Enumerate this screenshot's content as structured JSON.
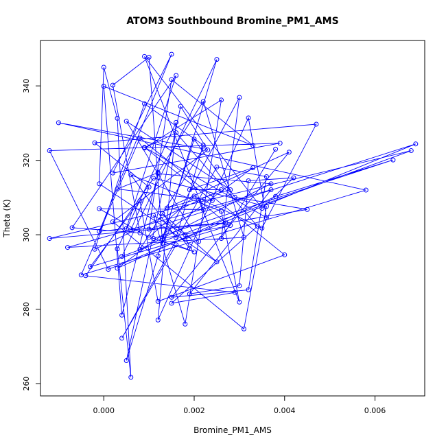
{
  "chart_data": {
    "type": "line",
    "title": "ATOM3 Southbound Bromine_PM1_AMS",
    "xlabel": "Bromine_PM1_AMS",
    "ylabel": "Theta (K)",
    "xlim": [
      -0.0014,
      0.0071
    ],
    "ylim": [
      256.7,
      352.2
    ],
    "x_ticks": [
      0.0,
      0.002,
      0.004,
      0.006
    ],
    "x_tick_labels": [
      "0.000",
      "0.002",
      "0.004",
      "0.006"
    ],
    "y_ticks": [
      260,
      280,
      300,
      320,
      340
    ],
    "y_tick_labels": [
      "260",
      "280",
      "300",
      "320",
      "340"
    ],
    "grid": false,
    "legend": "none",
    "markers": "open-circle",
    "series_color": "#0000ff",
    "series": [
      {
        "points": [
          [
            0.0038,
            323.0
          ],
          [
            0.0026,
            299.0
          ],
          [
            0.003,
            336.9
          ],
          [
            0.0013,
            297.7
          ],
          [
            0.001,
            347.7
          ],
          [
            0.0002,
            340.2
          ],
          [
            0.0008,
            300.5
          ],
          [
            -0.0007,
            301.9
          ],
          [
            0.0016,
            342.8
          ],
          [
            0.0005,
            301.7
          ],
          [
            -0.0001,
            300.9
          ],
          [
            0.0015,
            348.5
          ],
          [
            0.0002,
            316.6
          ],
          [
            0.0039,
            324.6
          ],
          [
            -0.0012,
            322.6
          ],
          [
            0.0001,
            290.7
          ],
          [
            0.0069,
            324.4
          ],
          [
            0.001,
            301.5
          ],
          [
            0.0015,
            341.7
          ],
          [
            0.0033,
            324.0
          ],
          [
            0.0,
            339.9
          ],
          [
            0.0004,
            278.4
          ],
          [
            0.0012,
            316.4
          ],
          [
            0.0037,
            313.7
          ],
          [
            0.0008,
            296.1
          ],
          [
            0.0022,
            323.1
          ],
          [
            -0.001,
            330.1
          ],
          [
            0.0058,
            312.0
          ],
          [
            -0.0005,
            289.2
          ],
          [
            0.0008,
            326.0
          ],
          [
            0.004,
            294.6
          ],
          [
            0.0012,
            282.1
          ],
          [
            0.0008,
            309.1
          ],
          [
            -0.0003,
            291.4
          ],
          [
            0.0028,
            302.5
          ],
          [
            0.0013,
            299.0
          ],
          [
            0.002,
            325.7
          ],
          [
            0.0029,
            310.1
          ],
          [
            0.0045,
            306.8
          ],
          [
            0.0027,
            303.1
          ],
          [
            -0.0012,
            299.0
          ],
          [
            0.0068,
            322.6
          ],
          [
            0.0004,
            294.2
          ],
          [
            0.0025,
            347.1
          ],
          [
            0.0012,
            294.3
          ],
          [
            0.0005,
            266.2
          ],
          [
            0.0017,
            334.5
          ],
          [
            0.0023,
            322.8
          ],
          [
            0.0002,
            303.5
          ],
          [
            0.0031,
            274.7
          ],
          [
            0.0036,
            307.6
          ],
          [
            0.0011,
            315.2
          ],
          [
            -0.0004,
            289.0
          ],
          [
            0.0029,
            284.5
          ],
          [
            0.0015,
            281.6
          ],
          [
            0.0034,
            302.3
          ],
          [
            0.0016,
            327.4
          ],
          [
            0.0009,
            323.3
          ],
          [
            0.0026,
            336.2
          ],
          [
            0.0018,
            276.0
          ],
          [
            0.0011,
            305.2
          ],
          [
            0.0018,
            300.0
          ],
          [
            0.0019,
            296.3
          ],
          [
            0.0013,
            305.7
          ],
          [
            0.0025,
            292.7
          ],
          [
            -0.0001,
            313.7
          ],
          [
            0.0,
            345.0
          ],
          [
            0.0003,
            331.3
          ],
          [
            0.0006,
            261.7
          ],
          [
            0.0003,
            296.2
          ],
          [
            0.0016,
            330.2
          ],
          [
            0.0012,
            277.1
          ],
          [
            0.0032,
            331.4
          ],
          [
            0.0036,
            304.6
          ],
          [
            0.0009,
            323.5
          ],
          [
            0.0024,
            309.2
          ],
          [
            0.0003,
            312.3
          ],
          [
            0.0012,
            316.7
          ],
          [
            0.0022,
            335.8
          ],
          [
            0.0031,
            299.3
          ],
          [
            -0.0008,
            296.6
          ],
          [
            0.0037,
            312.1
          ],
          [
            0.0019,
            284.1
          ],
          [
            0.003,
            286.3
          ],
          [
            0.0032,
            314.5
          ],
          [
            0.0042,
            315.3
          ],
          [
            0.0035,
            307.1
          ],
          [
            0.0009,
            347.9
          ],
          [
            0.0022,
            306.8
          ],
          [
            -0.0001,
            307.0
          ],
          [
            0.001,
            299.3
          ],
          [
            0.002,
            310.4
          ],
          [
            0.0035,
            301.8
          ],
          [
            0.0047,
            329.7
          ],
          [
            -0.0002,
            324.7
          ],
          [
            0.001,
            312.8
          ],
          [
            0.0006,
            301.3
          ],
          [
            0.0027,
            303.2
          ],
          [
            0.0021,
            309.3
          ],
          [
            0.003,
            281.9
          ],
          [
            0.0026,
            306.3
          ],
          [
            0.0006,
            316.1
          ],
          [
            0.0016,
            299.2
          ],
          [
            0.0022,
            324.1
          ],
          [
            0.0009,
            335.2
          ],
          [
            -0.0002,
            296.1
          ],
          [
            0.0026,
            312.1
          ],
          [
            0.0019,
            312.1
          ],
          [
            0.0033,
            318.0
          ],
          [
            0.0003,
            291.0
          ],
          [
            0.0038,
            310.3
          ],
          [
            0.0064,
            320.1
          ],
          [
            0.0011,
            299.0
          ],
          [
            0.002,
            295.4
          ],
          [
            0.0016,
            297.3
          ],
          [
            0.0004,
            272.2
          ],
          [
            0.0025,
            318.2
          ],
          [
            0.0036,
            315.6
          ],
          [
            0.0032,
            285.2
          ],
          [
            0.0015,
            283.2
          ],
          [
            0.0041,
            322.2
          ],
          [
            0.0014,
            307.2
          ],
          [
            0.0028,
            312.1
          ],
          [
            0.0005,
            330.5
          ],
          [
            0.0021,
            298.2
          ]
        ]
      }
    ]
  }
}
